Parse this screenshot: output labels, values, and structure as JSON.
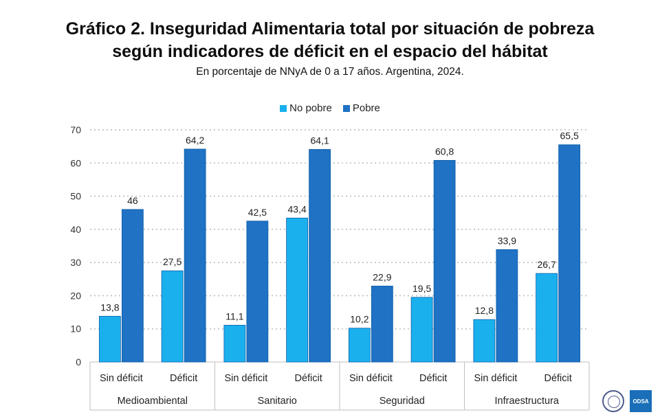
{
  "title_lines": [
    "Gráfico 2. Inseguridad Alimentaria total por situación de pobreza",
    "según indicadores de déficit en el espacio del hábitat"
  ],
  "subtitle": "En porcentaje de NNyA de 0 a 17 años. Argentina, 2024.",
  "logos": {
    "odsa_text": "ODSA"
  },
  "chart_data": {
    "type": "bar",
    "ylim": [
      0,
      70
    ],
    "yticks": [
      0,
      10,
      20,
      30,
      40,
      50,
      60,
      70
    ],
    "grid": true,
    "legend_position": "top-center",
    "groups": [
      "Medioambiental",
      "Sanitario",
      "Seguridad",
      "Infraestructura"
    ],
    "subcategories": [
      "Sin déficit",
      "Déficit"
    ],
    "series": [
      {
        "name": "No pobre",
        "color": "#1ab0ee",
        "values": [
          13.8,
          27.5,
          11.1,
          43.4,
          10.2,
          19.5,
          12.8,
          26.7
        ]
      },
      {
        "name": "Pobre",
        "color": "#1f72c4",
        "values": [
          46,
          64.2,
          42.5,
          64.1,
          22.9,
          60.8,
          33.9,
          65.5
        ]
      }
    ],
    "value_labels": [
      [
        "13,8",
        "27,5",
        "11,1",
        "43,4",
        "10,2",
        "19,5",
        "12,8",
        "26,7"
      ],
      [
        "46",
        "64,2",
        "42,5",
        "64,1",
        "22,9",
        "60,8",
        "33,9",
        "65,5"
      ]
    ]
  }
}
